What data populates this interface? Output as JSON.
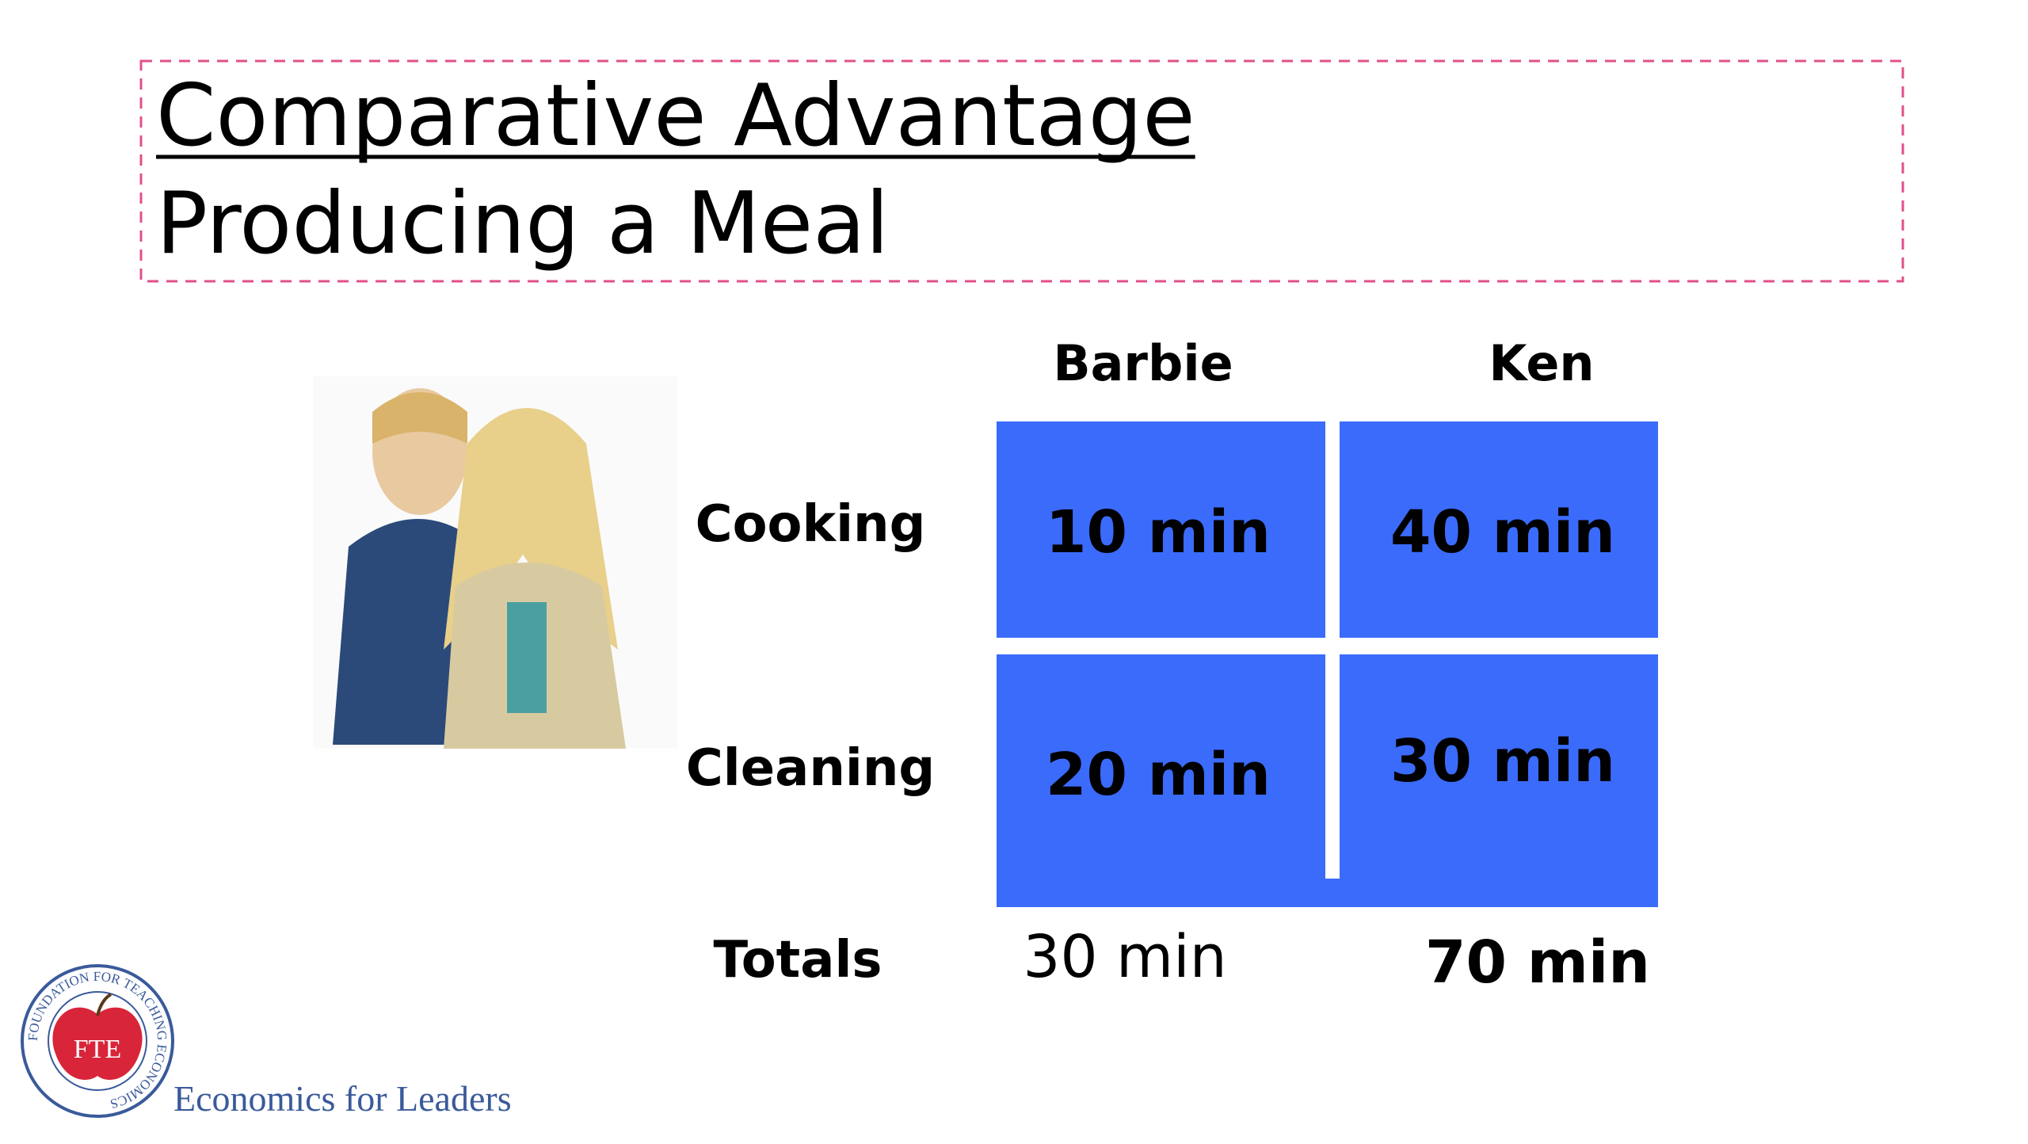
{
  "header": {
    "title": "Comparative Advantage",
    "subtitle": "Producing a Meal"
  },
  "table": {
    "columns": [
      "Barbie",
      "Ken"
    ],
    "rows": [
      {
        "label": "Cooking",
        "cells": [
          "10 min",
          "40 min"
        ]
      },
      {
        "label": "Cleaning",
        "cells": [
          "20 min",
          "30 min"
        ]
      }
    ],
    "totals": {
      "label": "Totals",
      "cells": [
        "30 min",
        "70 min"
      ]
    }
  },
  "logo": {
    "mark": "FTE",
    "ring": "FOUNDATION FOR TEACHING ECONOMICS",
    "tagline": "Economics for Leaders"
  }
}
